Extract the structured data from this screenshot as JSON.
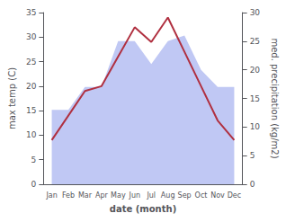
{
  "chart_data": {
    "type": "line",
    "categories": [
      "Jan",
      "Feb",
      "Mar",
      "Apr",
      "May",
      "Jun",
      "Jul",
      "Aug",
      "Sep",
      "Oct",
      "Nov",
      "Dec"
    ],
    "series": [
      {
        "type": "area",
        "color": "#c0c8f4",
        "axis": "y2",
        "values": [
          13,
          13,
          17,
          17,
          25,
          25,
          21,
          25,
          26,
          20,
          17,
          17
        ]
      },
      {
        "type": "line",
        "color": "#b03040",
        "values": [
          9,
          14,
          19,
          20,
          26,
          32,
          29,
          34,
          27,
          20,
          13,
          9
        ]
      }
    ],
    "xlabel": "date (month)",
    "ylabel": "max temp (C)",
    "y2label": "med. precipitation (kg/m2)",
    "ylim": [
      0,
      35
    ],
    "yticks": [
      0,
      5,
      10,
      15,
      20,
      25,
      30,
      35
    ],
    "y2lim": [
      0,
      30
    ],
    "y2ticks": [
      0,
      5,
      10,
      15,
      20,
      25,
      30
    ],
    "grid": false
  }
}
